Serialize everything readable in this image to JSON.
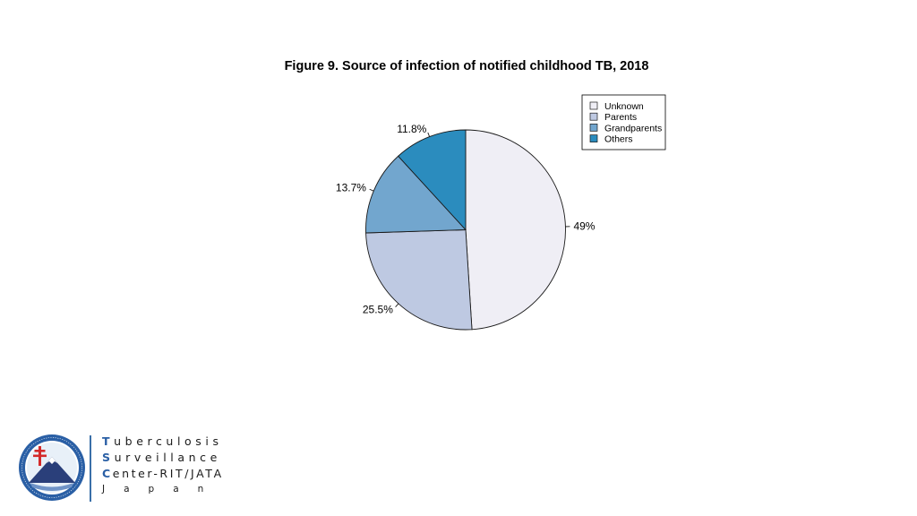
{
  "chart_data": {
    "type": "pie",
    "title": "Figure 9. Source of infection of notified childhood TB, 2018",
    "slices": [
      {
        "label": "Unknown",
        "value": 49,
        "value_label": "49%",
        "color": "#EFEEF5"
      },
      {
        "label": "Parents",
        "value": 25.5,
        "value_label": "25.5%",
        "color": "#BEC9E2"
      },
      {
        "label": "Grandparents",
        "value": 13.7,
        "value_label": "13.7%",
        "color": "#72A6CE"
      },
      {
        "label": "Others",
        "value": 11.8,
        "value_label": "11.8%",
        "color": "#2B8CBE"
      }
    ],
    "start": "top",
    "direction": "clockwise",
    "legend_position": "top-right"
  },
  "logo": {
    "line1_initial": "T",
    "line1_rest": "uberculosis",
    "line2_initial": "S",
    "line2_rest": "urveillance",
    "line3_initial": "C",
    "line3_rest": "enter-RIT/JATA",
    "line4": "Japan",
    "seal_colors": {
      "ring": "#2a5fa5",
      "cross": "#d42a2a",
      "mountain": "#2a3f7a"
    }
  }
}
